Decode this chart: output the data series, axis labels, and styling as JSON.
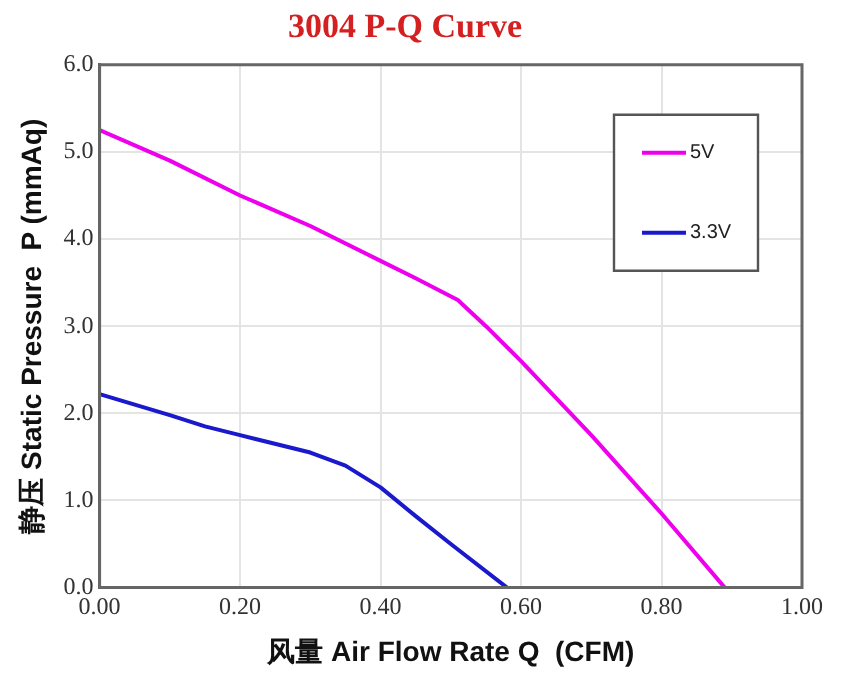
{
  "chart_data": {
    "type": "line",
    "title": "3004 P-Q Curve",
    "xlabel": "风量 Air Flow Rate Q  (CFM)",
    "ylabel": "静压 Static Pressure  P (mmAq)",
    "xlim": [
      0,
      1
    ],
    "xticks": [
      {
        "value": 0,
        "label": "0.00"
      },
      {
        "value": 0.2,
        "label": "0.20"
      },
      {
        "value": 0.4,
        "label": "0.40"
      },
      {
        "value": 0.6,
        "label": "0.60"
      },
      {
        "value": 0.8,
        "label": "0.80"
      },
      {
        "value": 1,
        "label": "1.00"
      }
    ],
    "ylim": [
      0,
      6
    ],
    "yticks": [
      {
        "value": 0,
        "label": "0.0"
      },
      {
        "value": 1,
        "label": "1.0"
      },
      {
        "value": 2,
        "label": "2.0"
      },
      {
        "value": 3,
        "label": "3.0"
      },
      {
        "value": 4,
        "label": "4.0"
      },
      {
        "value": 5,
        "label": "5.0"
      },
      {
        "value": 6,
        "label": "6.0"
      }
    ],
    "grid": true,
    "legend": "top right",
    "marker": "none",
    "line_style": "solid",
    "series": [
      {
        "name": "5V",
        "color": "#ee00ee",
        "x": [
          0,
          0.1,
          0.2,
          0.3,
          0.4,
          0.45,
          0.51,
          0.55,
          0.6,
          0.7,
          0.8,
          0.89
        ],
        "values": [
          5.25,
          4.9,
          4.5,
          4.15,
          3.75,
          3.55,
          3.3,
          3.0,
          2.6,
          1.75,
          0.85,
          0
        ]
      },
      {
        "name": "3.3V",
        "color": "#1a1acc",
        "x": [
          0,
          0.1,
          0.15,
          0.2,
          0.3,
          0.35,
          0.4,
          0.45,
          0.5,
          0.58
        ],
        "values": [
          2.22,
          1.98,
          1.85,
          1.75,
          1.55,
          1.4,
          1.15,
          0.82,
          0.5,
          0
        ]
      }
    ]
  }
}
